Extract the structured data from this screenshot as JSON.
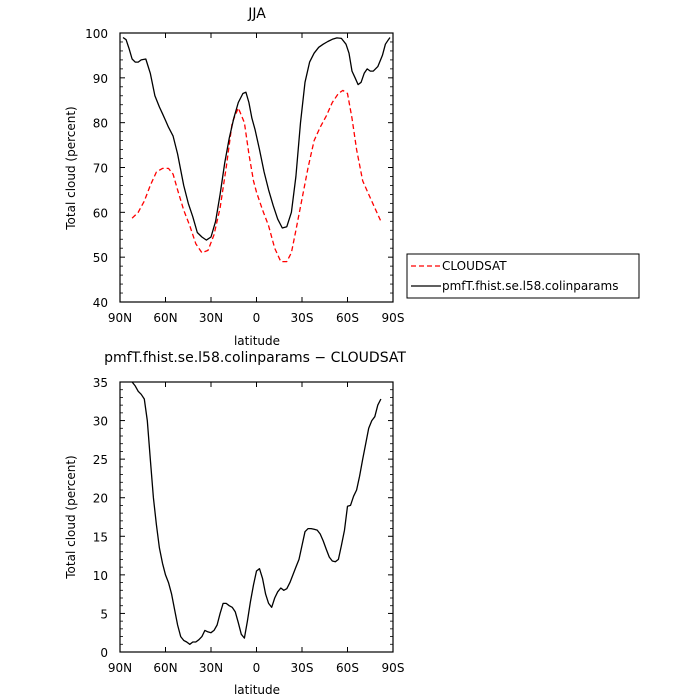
{
  "chart_data": [
    {
      "type": "line",
      "title": "JJA",
      "xlabel": "latitude",
      "ylabel": "Total cloud (percent)",
      "xlim": [
        90,
        -90
      ],
      "ylim": [
        40,
        100
      ],
      "x_ticks": [
        90,
        60,
        30,
        0,
        -30,
        -60,
        -90
      ],
      "x_tick_labels": [
        "90N",
        "60N",
        "30N",
        "0",
        "30S",
        "60S",
        "90S"
      ],
      "y_ticks": [
        40,
        50,
        60,
        70,
        80,
        90,
        100
      ],
      "y_tick_labels": [
        "40",
        "50",
        "60",
        "70",
        "80",
        "90",
        "100"
      ],
      "grid": false,
      "legend_position": "outside-right",
      "series": [
        {
          "name": "CLOUDSAT",
          "color": "#ff0000",
          "dash": "dashed",
          "x": [
            82,
            78,
            74,
            70,
            66,
            62,
            58,
            55,
            52,
            48,
            44,
            40,
            36,
            32,
            28,
            24,
            20,
            16,
            12,
            8,
            5,
            2,
            0,
            -4,
            -8,
            -12,
            -16,
            -20,
            -23,
            -26,
            -30,
            -34,
            -38,
            -42,
            -46,
            -50,
            -54,
            -57,
            -60,
            -63,
            -66,
            -70,
            -74,
            -78,
            -82
          ],
          "values": [
            58.7,
            60,
            62.5,
            66,
            69,
            69.8,
            69.8,
            68.5,
            65,
            60.5,
            57,
            53,
            51,
            51.5,
            55,
            61,
            70,
            80,
            83.3,
            80,
            73,
            67,
            64.5,
            60.5,
            57,
            52,
            49,
            49,
            51,
            56,
            63,
            70,
            76,
            79,
            81.5,
            84.5,
            86.5,
            87.2,
            86.5,
            81,
            74,
            67,
            64,
            61,
            58
          ]
        },
        {
          "name": "pmfT.fhist.se.l58.colinparams",
          "color": "#000000",
          "dash": "solid",
          "x": [
            88,
            86,
            84,
            82,
            80,
            78,
            76,
            73,
            70,
            67,
            64,
            62,
            60,
            58,
            55,
            52,
            48,
            45,
            42,
            39,
            36,
            33,
            30,
            27,
            24,
            21,
            18,
            15,
            12,
            9,
            7,
            5,
            3,
            1,
            -2,
            -5,
            -8,
            -11,
            -14,
            -17,
            -20,
            -23,
            -26,
            -29,
            -32,
            -35,
            -38,
            -41,
            -44,
            -47,
            -50,
            -53,
            -56,
            -59,
            -61,
            -63,
            -65,
            -67,
            -69,
            -71,
            -73,
            -75,
            -77,
            -80,
            -83,
            -85,
            -87,
            -88
          ],
          "values": [
            99,
            98.5,
            96.5,
            94.2,
            93.5,
            93.5,
            94,
            94.2,
            91,
            86,
            83.5,
            82,
            80.5,
            79,
            77,
            73,
            66,
            62,
            59,
            55.5,
            54.5,
            53.8,
            54.5,
            58,
            64,
            71,
            76.5,
            81,
            84.5,
            86.5,
            86.8,
            84.5,
            81,
            78.5,
            74,
            69,
            65,
            61.5,
            58.5,
            56.5,
            56.8,
            60,
            68,
            80,
            89,
            93.5,
            95.5,
            96.8,
            97.5,
            98.1,
            98.6,
            98.9,
            98.8,
            97.5,
            95.5,
            91.5,
            90,
            88.5,
            89,
            91,
            92,
            91.5,
            91.5,
            92.5,
            95,
            97.5,
            98.5,
            99
          ]
        }
      ]
    },
    {
      "type": "line",
      "title": "pmfT.fhist.se.l58.colinparams  −  CLOUDSAT",
      "xlabel": "latitude",
      "ylabel": "Total cloud (percent)",
      "xlim": [
        90,
        -90
      ],
      "ylim": [
        0,
        35
      ],
      "x_ticks": [
        90,
        60,
        30,
        0,
        -30,
        -60,
        -90
      ],
      "x_tick_labels": [
        "90N",
        "60N",
        "30N",
        "0",
        "30S",
        "60S",
        "90S"
      ],
      "y_ticks": [
        0,
        5,
        10,
        15,
        20,
        25,
        30,
        35
      ],
      "y_tick_labels": [
        "0",
        "5",
        "10",
        "15",
        "20",
        "25",
        "30",
        "35"
      ],
      "grid": false,
      "series": [
        {
          "color": "#000000",
          "dash": "solid",
          "x": [
            82,
            80,
            78,
            76,
            74,
            72,
            70,
            68,
            66,
            64,
            62,
            60,
            58,
            56,
            54,
            52,
            50,
            48,
            46,
            44,
            42,
            40,
            38,
            36,
            34,
            32,
            30,
            28,
            26,
            24,
            22,
            20,
            18,
            16,
            14,
            12,
            10,
            8,
            6,
            4,
            2,
            0,
            -2,
            -4,
            -6,
            -8,
            -10,
            -12,
            -14,
            -16,
            -18,
            -20,
            -22,
            -24,
            -26,
            -28,
            -30,
            -32,
            -34,
            -36,
            -38,
            -40,
            -42,
            -44,
            -46,
            -48,
            -50,
            -52,
            -54,
            -56,
            -58,
            -60,
            -62,
            -64,
            -66,
            -68,
            -70,
            -72,
            -74,
            -76,
            -78,
            -80,
            -82
          ],
          "values": [
            35,
            34.5,
            33.8,
            33.4,
            32.8,
            30,
            25,
            20,
            16.5,
            13.5,
            11.5,
            10,
            9,
            7.5,
            5.5,
            3.5,
            2,
            1.5,
            1.3,
            1,
            1.3,
            1.3,
            1.6,
            2,
            2.8,
            2.6,
            2.5,
            2.8,
            3.5,
            5,
            6.3,
            6.3,
            6,
            5.8,
            5.2,
            3.8,
            2.3,
            1.8,
            4,
            6.5,
            8.7,
            10.5,
            10.8,
            9.5,
            7.5,
            6.3,
            5.8,
            7,
            7.8,
            8.3,
            8,
            8.2,
            9,
            10,
            11,
            12,
            13.8,
            15.6,
            16,
            16,
            15.9,
            15.8,
            15.3,
            14.4,
            13.3,
            12.3,
            11.8,
            11.7,
            12,
            13.8,
            15.8,
            18.9,
            19,
            20.2,
            21,
            22.8,
            25,
            27,
            29,
            30,
            30.5,
            32,
            32.8
          ]
        }
      ]
    }
  ]
}
